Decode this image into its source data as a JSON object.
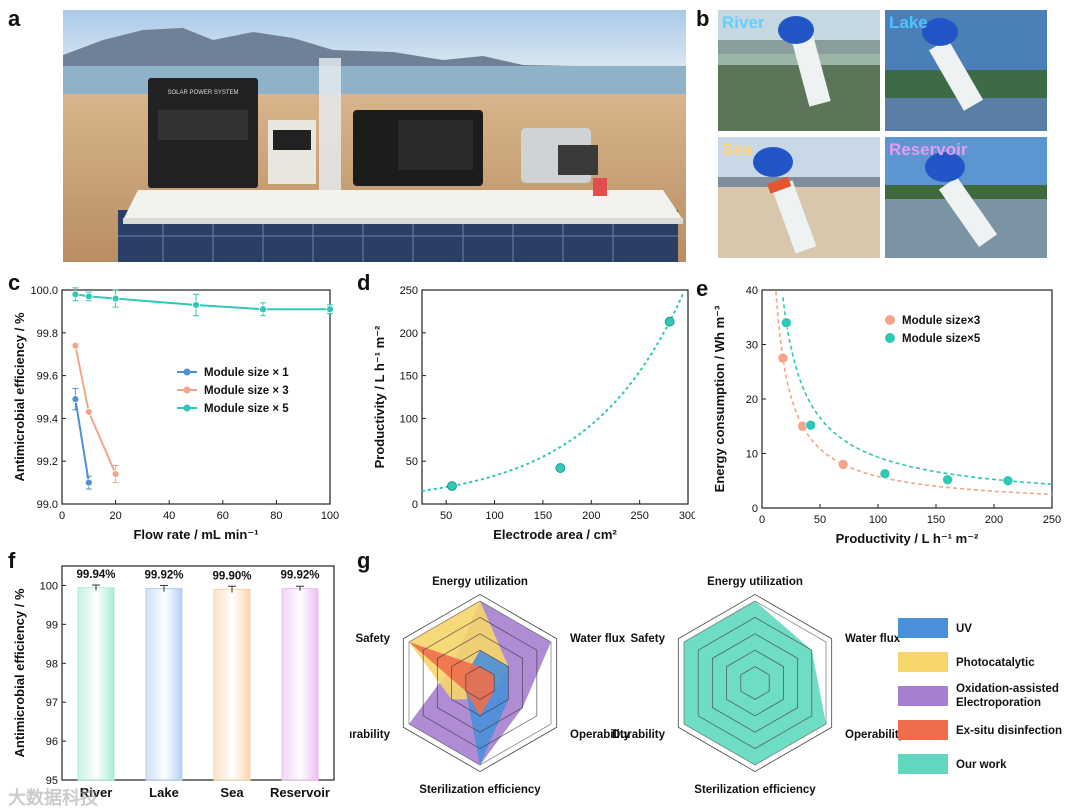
{
  "panels": {
    "a": "a",
    "b": "b",
    "c": "c",
    "d": "d",
    "e": "e",
    "f": "f",
    "g": "g"
  },
  "photo_a": {
    "device_label": "SOLAR POWER SYSTEM"
  },
  "photo_b": {
    "tiles": [
      {
        "label": "River",
        "tube": "River",
        "color": "#5fd0ff"
      },
      {
        "label": "Lake",
        "tube": "Lake",
        "color": "#4ec3ff"
      },
      {
        "label": "Sea",
        "tube": "Sea",
        "color": "#ffd27a"
      },
      {
        "label": "Reservoir",
        "tube": "Reservoir",
        "color": "#e39cf4"
      }
    ]
  },
  "watermark": "大数据科技",
  "chart_data": [
    {
      "id": "c",
      "type": "line",
      "xlabel": "Flow rate / mL min⁻¹",
      "ylabel": "Antimicrobial efficiency / %",
      "xlim": [
        0,
        100
      ],
      "ylim": [
        99.0,
        100.0
      ],
      "xticks": [
        "0",
        "20",
        "40",
        "60",
        "80",
        "100"
      ],
      "yticks": [
        "99.0",
        "99.2",
        "99.4",
        "99.6",
        "99.8",
        "100.0"
      ],
      "legend_position": "center-right",
      "series": [
        {
          "name": "Module size × 1",
          "color": "#4f8fd6",
          "x": [
            5,
            10
          ],
          "y": [
            99.49,
            99.1
          ],
          "err": [
            0.05,
            0.03
          ]
        },
        {
          "name": "Module size × 3",
          "color": "#f2a58a",
          "x": [
            5,
            10,
            20
          ],
          "y": [
            99.74,
            99.43,
            99.14
          ],
          "err": [
            0.0,
            0.0,
            0.04
          ]
        },
        {
          "name": "Module size × 5",
          "color": "#2ec8b5",
          "x": [
            5,
            10,
            20,
            50,
            75,
            100
          ],
          "y": [
            99.98,
            99.97,
            99.96,
            99.93,
            99.91,
            99.91
          ],
          "err": [
            0.03,
            0.02,
            0.04,
            0.05,
            0.03,
            0.02
          ]
        }
      ]
    },
    {
      "id": "d",
      "type": "scatter",
      "xlabel": "Electrode area / cm²",
      "ylabel": "Productivity / L h⁻¹ m⁻²",
      "xlim": [
        25,
        300
      ],
      "ylim": [
        0,
        250
      ],
      "xticks": [
        "50",
        "100",
        "150",
        "200",
        "250",
        "300"
      ],
      "yticks": [
        "0",
        "50",
        "100",
        "150",
        "200",
        "250"
      ],
      "points": {
        "x": [
          56,
          168,
          281
        ],
        "y": [
          21,
          42,
          213
        ]
      },
      "fit": "exponential",
      "color": "#2ec8b5"
    },
    {
      "id": "e",
      "type": "scatter",
      "xlabel": "Productivity / L h⁻¹ m⁻²",
      "ylabel": "Energy consumption / Wh m⁻³",
      "xlim": [
        0,
        250
      ],
      "ylim": [
        0,
        40
      ],
      "xticks": [
        "0",
        "50",
        "100",
        "150",
        "200",
        "250"
      ],
      "yticks": [
        "0",
        "10",
        "20",
        "30",
        "40"
      ],
      "legend_position": "top-right",
      "series": [
        {
          "name": "Module size×3",
          "color": "#f2a58a",
          "x": [
            18,
            35,
            70
          ],
          "y": [
            27.5,
            15.0,
            8.0
          ]
        },
        {
          "name": "Module size×5",
          "color": "#2ec8b5",
          "x": [
            21,
            42,
            106,
            160,
            212
          ],
          "y": [
            34.0,
            15.2,
            6.3,
            5.2,
            5.0
          ]
        }
      ],
      "fit": "reciprocal"
    },
    {
      "id": "f",
      "type": "bar",
      "ylabel": "Antimicrobial efficiency / %",
      "ylim": [
        95,
        100.5
      ],
      "yticks": [
        "95",
        "96",
        "97",
        "98",
        "99",
        "100"
      ],
      "categories": [
        "River",
        "Lake",
        "Sea",
        "Reservoir"
      ],
      "values": [
        99.94,
        99.92,
        99.9,
        99.92
      ],
      "labels": [
        "99.94%",
        "99.92%",
        "99.90%",
        "99.92%"
      ],
      "colors": [
        "#a7ecd6",
        "#b3cff4",
        "#f6d6ad",
        "#efbcf3"
      ],
      "err": [
        0.07,
        0.08,
        0.08,
        0.06
      ]
    },
    {
      "id": "g",
      "type": "radar",
      "axes": [
        "Energy utilization",
        "Water flux",
        "Operability",
        "Sterilization efficiency",
        "Durability",
        "Safety"
      ],
      "levels": 5,
      "legend": [
        {
          "name": "UV",
          "color": "#4a90d9"
        },
        {
          "name": "Photocatalytic",
          "color": "#f6d56b"
        },
        {
          "name": "Oxidation-assisted Electroporation",
          "color": "#a680cf"
        },
        {
          "name": "Ex-situ disinfection",
          "color": "#ee6e4c"
        },
        {
          "name": "Our work",
          "color": "#5fd8bf"
        }
      ],
      "left_series": [
        {
          "name": "Oxidation-assisted Electroporation",
          "color": "#a680cf",
          "values": [
            5,
            5,
            3,
            5,
            5,
            2
          ]
        },
        {
          "name": "Photocatalytic",
          "color": "#f6d56b",
          "values": [
            5,
            2,
            1,
            1,
            2,
            5
          ]
        },
        {
          "name": "UV",
          "color": "#4a90d9",
          "values": [
            2,
            2,
            2,
            5,
            1,
            1
          ]
        },
        {
          "name": "Ex-situ disinfection",
          "color": "#ee6e4c",
          "values": [
            1,
            1,
            1,
            2,
            1,
            5
          ]
        }
      ],
      "right_series": [
        {
          "name": "Our work",
          "color": "#5fd8bf",
          "values": [
            5,
            4,
            5,
            5,
            5,
            5
          ]
        }
      ]
    }
  ]
}
